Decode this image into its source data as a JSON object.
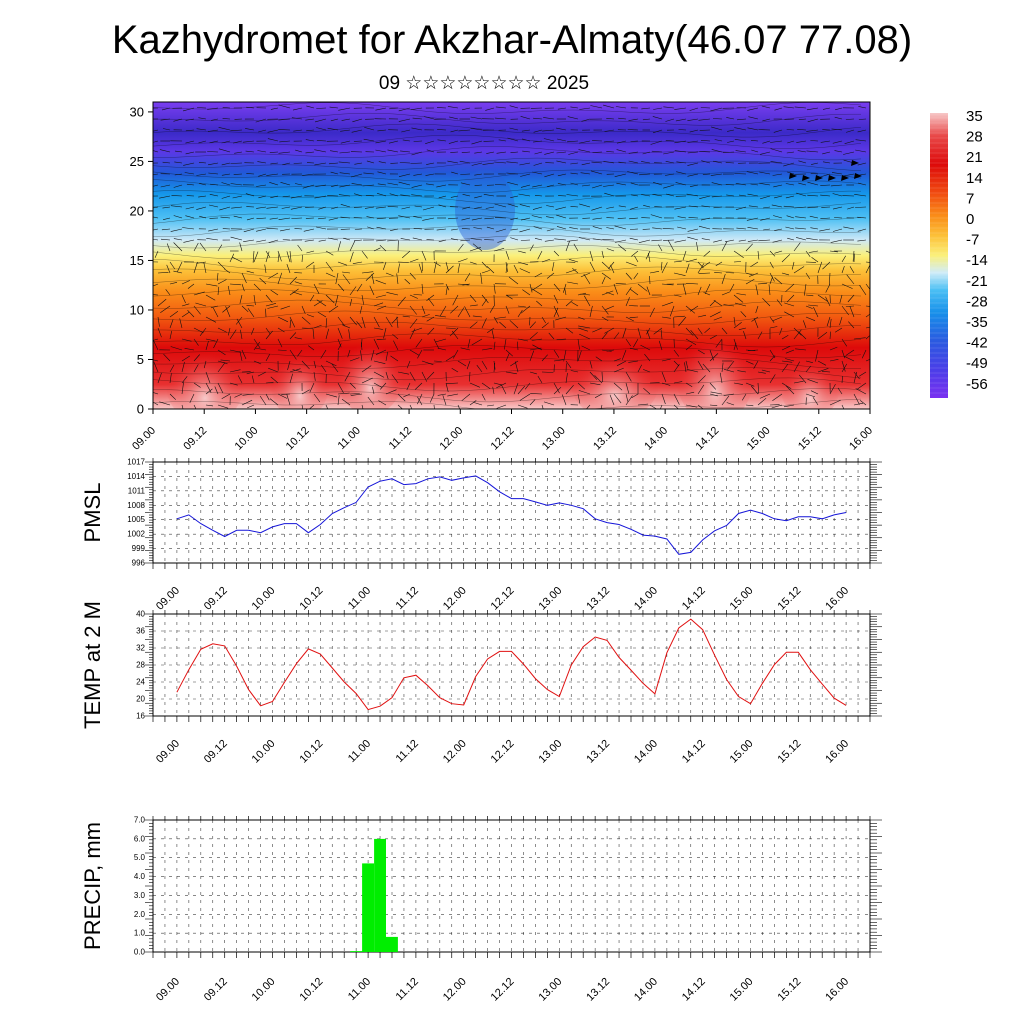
{
  "title": "Kazhydromet for Akzhar-Almaty(46.07 77.08)",
  "subtitle": "09 ☆☆☆☆☆☆☆☆ 2025",
  "time_labels": [
    "09.00",
    "09.12",
    "10.00",
    "10.12",
    "11.00",
    "11.12",
    "12.00",
    "12.12",
    "13.00",
    "13.12",
    "14.00",
    "14.12",
    "15.00",
    "15.12",
    "16.00"
  ],
  "colors": {
    "pmsl_line": "#1515d8",
    "temp_line": "#e01010",
    "precip_bar": "#00ee00"
  },
  "chart_data": [
    {
      "type": "heatmap",
      "name_hint": "cross-section temperature with wind vectors",
      "x_ticks": [
        "09.00",
        "09.12",
        "10.00",
        "10.12",
        "11.00",
        "11.12",
        "12.00",
        "12.12",
        "13.00",
        "13.12",
        "14.00",
        "14.12",
        "15.00",
        "15.12",
        "16.00"
      ],
      "y_ticks": [
        0,
        5,
        10,
        15,
        20,
        25,
        30
      ],
      "ylim": [
        0,
        31
      ],
      "colorbar_labels": [
        "35",
        "28",
        "21",
        "14",
        "7",
        "0",
        "-7",
        "-14",
        "-21",
        "-28",
        "-35",
        "-42",
        "-49",
        "-56"
      ],
      "colorbar_range": [
        -60,
        38
      ]
    },
    {
      "type": "line",
      "ylabel": "PMSL",
      "y_ticks": [
        996,
        999,
        1002,
        1005,
        1008,
        1011,
        1014,
        1017
      ],
      "ylim": [
        996,
        1017
      ],
      "x": [
        0,
        3,
        6,
        9,
        12,
        15,
        18,
        21,
        24,
        27,
        30,
        33,
        36,
        39,
        42,
        45,
        48,
        51,
        54,
        57,
        60,
        63,
        66,
        69,
        72,
        75,
        78,
        81,
        84,
        87,
        90,
        93,
        96,
        99,
        102,
        105,
        108,
        111,
        114,
        117,
        120,
        123,
        126,
        129,
        132,
        135,
        138,
        141,
        144,
        147,
        150,
        153,
        156,
        159,
        162,
        165,
        168
      ],
      "values": [
        1005.2,
        1006.0,
        1004.2,
        1002.8,
        1001.5,
        1002.8,
        1002.8,
        1002.3,
        1003.5,
        1004.2,
        1004.2,
        1002.3,
        1004.0,
        1006.3,
        1007.5,
        1008.6,
        1011.8,
        1013.0,
        1013.5,
        1012.3,
        1012.5,
        1013.5,
        1013.9,
        1013.2,
        1013.7,
        1014.1,
        1012.7,
        1010.8,
        1009.4,
        1009.4,
        1008.7,
        1008.0,
        1008.5,
        1008.0,
        1007.3,
        1005.2,
        1004.4,
        1004.0,
        1003.0,
        1001.8,
        1001.6,
        1001.0,
        997.8,
        998.2,
        1000.8,
        1002.7,
        1003.8,
        1006.3,
        1007.0,
        1006.3,
        1005.2,
        1004.8,
        1005.6,
        1005.6,
        1005.2,
        1006.0,
        1006.5
      ]
    },
    {
      "type": "line",
      "ylabel": "TEMP at 2 M",
      "y_ticks": [
        16,
        20,
        24,
        28,
        32,
        36,
        40
      ],
      "ylim": [
        16,
        40
      ],
      "x": [
        0,
        3,
        6,
        9,
        12,
        15,
        18,
        21,
        24,
        27,
        30,
        33,
        36,
        39,
        42,
        45,
        48,
        51,
        54,
        57,
        60,
        63,
        66,
        69,
        72,
        75,
        78,
        81,
        84,
        87,
        90,
        93,
        96,
        99,
        102,
        105,
        108,
        111,
        114,
        117,
        120,
        123,
        126,
        129,
        132,
        135,
        138,
        141,
        144,
        147,
        150,
        153,
        156,
        159,
        162,
        165,
        168
      ],
      "values": [
        21.6,
        26.9,
        31.7,
        33.0,
        32.5,
        27.7,
        22.2,
        18.4,
        19.4,
        23.9,
        28.3,
        31.8,
        30.6,
        27.3,
        24.0,
        21.3,
        17.5,
        18.3,
        20.3,
        25.0,
        25.6,
        23.1,
        20.3,
        18.9,
        18.6,
        25.3,
        29.4,
        31.2,
        31.2,
        28.2,
        24.8,
        22.2,
        20.6,
        28.0,
        32.3,
        34.6,
        33.8,
        29.8,
        26.8,
        23.7,
        21.2,
        30.9,
        36.7,
        38.8,
        36.3,
        30.3,
        24.6,
        20.6,
        18.9,
        23.7,
        28.1,
        31.0,
        31.0,
        26.9,
        23.5,
        20.2,
        18.5
      ]
    },
    {
      "type": "bar",
      "ylabel": "PRECIP, mm",
      "y_ticks": [
        "0.0",
        "1.0",
        "2.0",
        "3.0",
        "4.0",
        "5.0",
        "6.0",
        "7.0"
      ],
      "ylim": [
        0,
        7
      ],
      "x": [
        0,
        3,
        6,
        9,
        12,
        15,
        18,
        21,
        24,
        27,
        30,
        33,
        36,
        39,
        42,
        45,
        48,
        51,
        54,
        57,
        60,
        63,
        66,
        69,
        72,
        75,
        78,
        81,
        84,
        87,
        90,
        93,
        96,
        99,
        102,
        105,
        108,
        111,
        114,
        117,
        120,
        123,
        126,
        129,
        132,
        135,
        138,
        141,
        144,
        147,
        150,
        153,
        156,
        159,
        162,
        165,
        168
      ],
      "values": [
        0,
        0,
        0,
        0,
        0,
        0,
        0,
        0,
        0,
        0,
        0,
        0,
        0,
        0,
        0,
        0.05,
        4.7,
        6.0,
        0.8,
        0,
        0,
        0,
        0,
        0,
        0,
        0,
        0,
        0,
        0,
        0,
        0,
        0,
        0,
        0,
        0,
        0,
        0,
        0,
        0,
        0,
        0,
        0,
        0,
        0,
        0,
        0,
        0,
        0,
        0,
        0,
        0,
        0,
        0,
        0,
        0,
        0,
        0
      ]
    }
  ]
}
